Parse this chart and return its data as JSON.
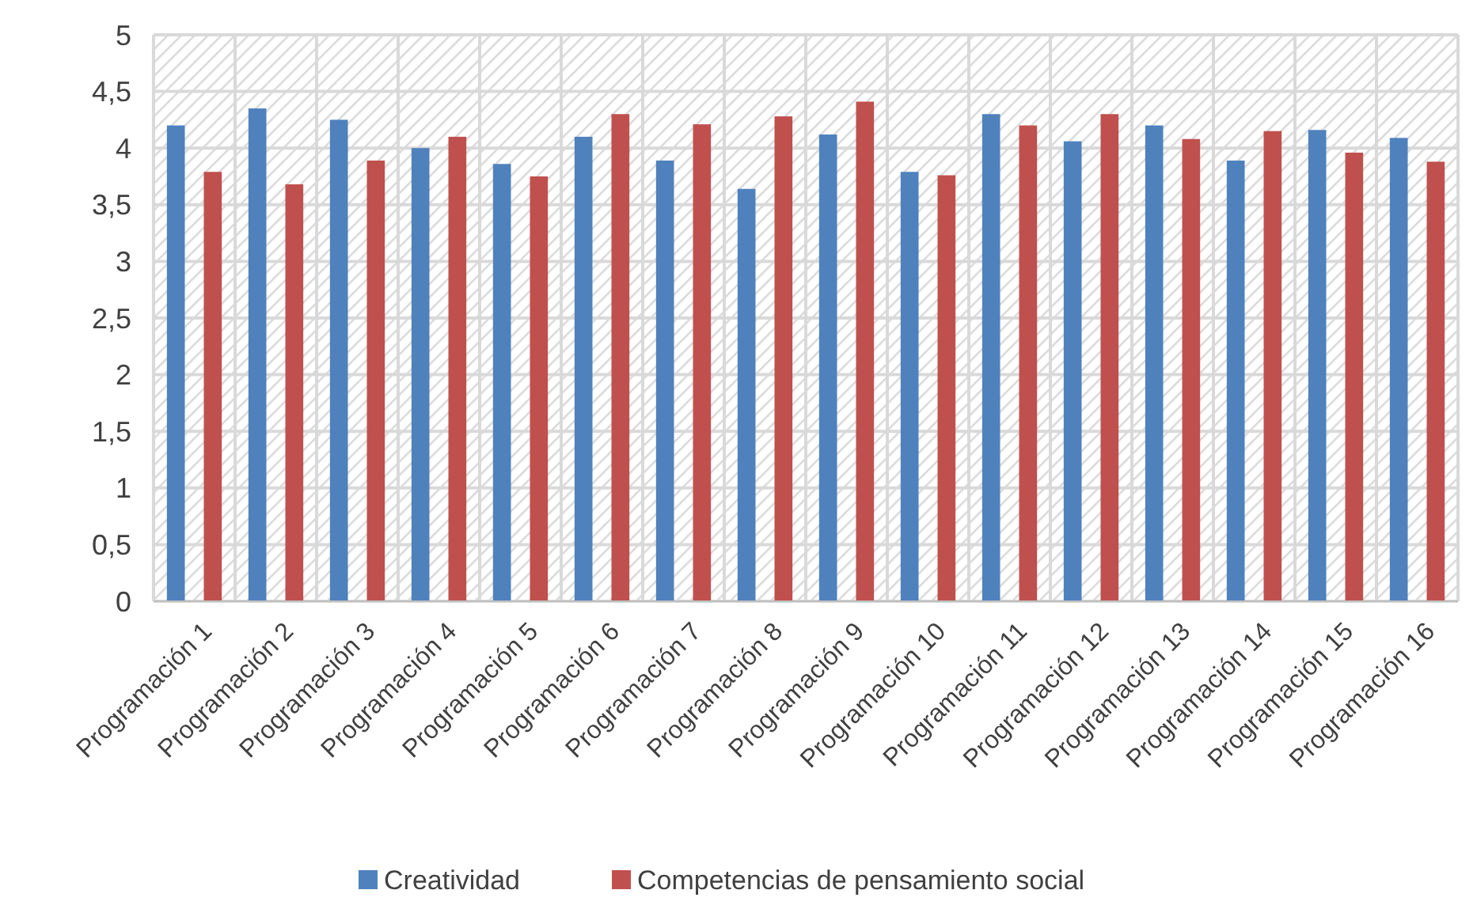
{
  "chart_data": {
    "type": "bar",
    "categories": [
      "Programación 1",
      "Programación 2",
      "Programación 3",
      "Programación 4",
      "Programación 5",
      "Programación 6",
      "Programación 7",
      "Programación 8",
      "Programación 9",
      "Programación 10",
      "Programación 11",
      "Programación 12",
      "Programación 13",
      "Programación 14",
      "Programación 15",
      "Programación 16"
    ],
    "series": [
      {
        "name": "Creatividad",
        "color": "#4f81bd",
        "values": [
          4.2,
          4.35,
          4.25,
          4.0,
          3.86,
          4.1,
          3.89,
          3.64,
          4.12,
          3.79,
          4.3,
          4.06,
          4.2,
          3.89,
          4.16,
          4.09
        ]
      },
      {
        "name": "Competencias de pensamiento social",
        "color": "#c0504d",
        "values": [
          3.79,
          3.68,
          3.89,
          4.1,
          3.75,
          4.3,
          4.21,
          4.28,
          4.41,
          3.76,
          4.2,
          4.3,
          4.08,
          4.15,
          3.96,
          3.88
        ]
      }
    ],
    "ylim": [
      0,
      5
    ],
    "yticks": [
      0,
      {
        "value": 0.5,
        "label": "0,5"
      },
      1,
      {
        "value": 1.5,
        "label": "1,5"
      },
      2,
      {
        "value": 2.5,
        "label": "2,5"
      },
      3,
      {
        "value": 3.5,
        "label": "3,5"
      },
      4,
      {
        "value": 4.5,
        "label": "4,5"
      },
      5
    ],
    "grid": true,
    "legend": "bottom"
  }
}
